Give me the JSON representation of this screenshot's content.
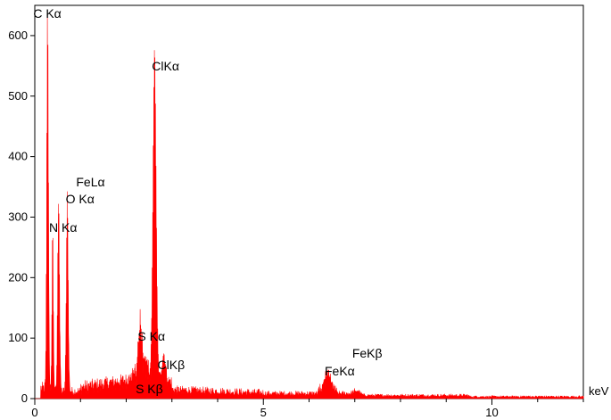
{
  "chart_data": {
    "type": "area",
    "title": "",
    "xlabel": "keV",
    "ylabel": "",
    "xlim": [
      0,
      12
    ],
    "ylim": [
      0,
      650
    ],
    "grid": false,
    "series_color": "#ff0000",
    "x_ticks": [
      {
        "value": 0,
        "label": "0"
      },
      {
        "value": 5,
        "label": "5"
      },
      {
        "value": 10,
        "label": "10"
      }
    ],
    "y_ticks": [
      {
        "value": 0,
        "label": "0"
      },
      {
        "value": 100,
        "label": "100"
      },
      {
        "value": 200,
        "label": "200"
      },
      {
        "value": 300,
        "label": "300"
      },
      {
        "value": 400,
        "label": "400"
      },
      {
        "value": 500,
        "label": "500"
      },
      {
        "value": 600,
        "label": "600"
      }
    ],
    "peaks": [
      {
        "label": "C Kα",
        "x": 0.28,
        "y": 636
      },
      {
        "label": "N Kα",
        "x": 0.39,
        "y": 270
      },
      {
        "label": "O Kα",
        "x": 0.52,
        "y": 320
      },
      {
        "label": "FeLα",
        "x": 0.71,
        "y": 330
      },
      {
        "label": "S Kα",
        "x": 2.31,
        "y": 75
      },
      {
        "label": "S Kβ",
        "x": 2.46,
        "y": 25
      },
      {
        "label": "ClKα",
        "x": 2.62,
        "y": 543
      },
      {
        "label": "ClKβ",
        "x": 2.82,
        "y": 45
      },
      {
        "label": "FeKα",
        "x": 6.4,
        "y": 30
      },
      {
        "label": "FeKβ",
        "x": 7.06,
        "y": 8
      }
    ]
  }
}
